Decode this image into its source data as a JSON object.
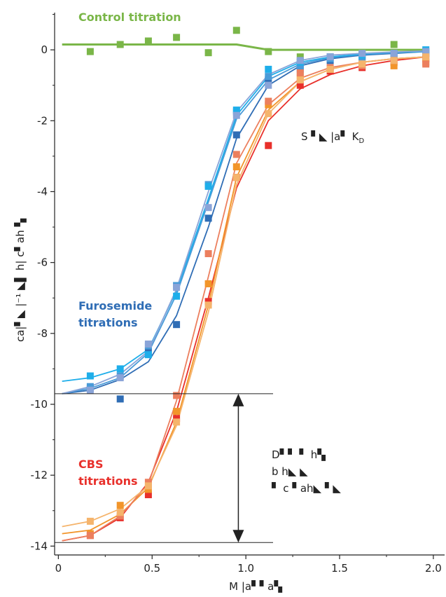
{
  "chart_data": {
    "type": "scatter",
    "xlabel": "M  |a▘▘a▚",
    "ylabel": "ca|▘◣ |⁻¹ ◣▌ h| c▘ah ▚",
    "xlim": [
      -0.02,
      2.06
    ],
    "ylim": [
      -14.25,
      1.05
    ],
    "x_ticks": [
      "0",
      "0.5",
      "1.0",
      "1.5",
      "2.0"
    ],
    "y_ticks": [
      "0",
      "-2",
      "-4",
      "-6",
      "-8",
      "-10",
      "-12",
      "-14"
    ],
    "grid": false,
    "labels": {
      "control": "Control titration",
      "furosemide_line1": "Furosemide",
      "furosemide_line2": "titrations",
      "cbs_line1": "CBS",
      "cbs_line2": "titrations"
    },
    "annotations": {
      "stoich": "S ▘◣ |a▘ K",
      "stoich_sub": "D",
      "dh_line1": "D▘▘ ▘  h▚",
      "dh_line2": "b h◣ ◣",
      "dh_line3": "▘ c ▘ah◣ ▘◣"
    },
    "colors": {
      "control": "#7ab648",
      "furosemide": [
        "#2f6db5",
        "#4a9bd8",
        "#1eaeea",
        "#8aa4d8"
      ],
      "cbs": [
        "#e8302b",
        "#f2952a",
        "#ec7f5e",
        "#f5b46c"
      ]
    },
    "enthalpy_arrow": {
      "x": 0.96,
      "y_top": -9.7,
      "y_bottom": -13.9
    },
    "series": [
      {
        "group": "control",
        "x": [
          0.02,
          0.17,
          0.33,
          0.48,
          0.63,
          0.8,
          0.95,
          1.12,
          1.29,
          1.45,
          1.62,
          1.79,
          1.96
        ],
        "fit": [
          0.15,
          0.15,
          0.15,
          0.15,
          0.15,
          0.15,
          0.15,
          0.0,
          0.0,
          0.0,
          0.0,
          0.0,
          0.0
        ],
        "points_x": [
          0.17,
          0.33,
          0.48,
          0.63,
          0.8,
          0.95,
          1.12,
          1.29,
          1.45,
          1.62,
          1.79,
          1.96
        ],
        "points_y": [
          -0.05,
          0.15,
          0.25,
          0.35,
          -0.08,
          0.55,
          -0.05,
          -0.2,
          -0.2,
          -0.1,
          0.15,
          -0.05
        ]
      },
      {
        "group": "furosemide",
        "x": [
          0.02,
          0.17,
          0.33,
          0.48,
          0.63,
          0.8,
          0.95,
          1.12,
          1.29,
          1.45,
          1.62,
          1.79,
          1.96
        ],
        "fit": [
          -9.7,
          -9.6,
          -9.3,
          -8.8,
          -7.5,
          -5.0,
          -2.5,
          -1.0,
          -0.45,
          -0.25,
          -0.15,
          -0.1,
          -0.05
        ],
        "points_x": [
          0.17,
          0.33,
          0.48,
          0.63,
          0.8,
          0.95,
          1.12,
          1.29,
          1.45,
          1.62,
          1.79,
          1.96
        ],
        "points_y": [
          -9.55,
          -9.85,
          -8.5,
          -7.75,
          -4.75,
          -2.4,
          -0.85,
          -0.55,
          -0.3,
          -0.2,
          -0.15,
          -0.1
        ]
      },
      {
        "group": "furosemide",
        "x": [
          0.02,
          0.17,
          0.33,
          0.48,
          0.63,
          0.8,
          0.95,
          1.12,
          1.29,
          1.45,
          1.62,
          1.79,
          1.96
        ],
        "fit": [
          -9.7,
          -9.55,
          -9.25,
          -8.55,
          -6.9,
          -4.3,
          -1.95,
          -0.85,
          -0.4,
          -0.22,
          -0.13,
          -0.08,
          -0.05
        ],
        "points_x": [
          0.17,
          0.33,
          0.48,
          0.63,
          0.8,
          0.95,
          1.12,
          1.29,
          1.45,
          1.62,
          1.79,
          1.96
        ],
        "points_y": [
          -9.5,
          -9.2,
          -8.35,
          -6.65,
          -3.8,
          -1.75,
          -0.75,
          -0.45,
          -0.25,
          -0.2,
          -0.1,
          -0.05
        ]
      },
      {
        "group": "furosemide",
        "x": [
          0.02,
          0.17,
          0.33,
          0.48,
          0.63,
          0.8,
          0.95,
          1.12,
          1.29,
          1.45,
          1.62,
          1.79,
          1.96
        ],
        "fit": [
          -9.35,
          -9.25,
          -9.0,
          -8.45,
          -6.8,
          -4.2,
          -1.85,
          -0.75,
          -0.35,
          -0.2,
          -0.12,
          -0.07,
          -0.04
        ],
        "points_x": [
          0.17,
          0.33,
          0.48,
          0.63,
          0.8,
          0.95,
          1.12,
          1.29,
          1.45,
          1.62,
          1.79,
          1.96
        ],
        "points_y": [
          -9.2,
          -9.0,
          -8.6,
          -6.95,
          -3.85,
          -1.7,
          -0.55,
          -0.35,
          -0.2,
          -0.15,
          -0.1,
          0.0
        ]
      },
      {
        "group": "furosemide",
        "x": [
          0.02,
          0.17,
          0.33,
          0.48,
          0.63,
          0.8,
          0.95,
          1.12,
          1.29,
          1.45,
          1.62,
          1.79,
          1.96
        ],
        "fit": [
          -9.7,
          -9.5,
          -9.15,
          -8.5,
          -6.75,
          -4.0,
          -1.75,
          -0.7,
          -0.3,
          -0.15,
          -0.1,
          -0.06,
          -0.03
        ],
        "points_x": [
          0.17,
          0.33,
          0.48,
          0.63,
          0.8,
          0.95,
          1.12,
          1.29,
          1.45,
          1.62,
          1.79,
          1.96
        ],
        "points_y": [
          -9.6,
          -9.25,
          -8.3,
          -6.7,
          -4.45,
          -1.85,
          -1.0,
          -0.3,
          -0.2,
          -0.1,
          -0.1,
          -0.05
        ]
      },
      {
        "group": "cbs",
        "x": [
          0.02,
          0.17,
          0.33,
          0.48,
          0.63,
          0.8,
          0.95,
          1.12,
          1.29,
          1.45,
          1.62,
          1.79,
          1.96
        ],
        "fit": [
          -13.85,
          -13.7,
          -13.2,
          -12.2,
          -10.2,
          -7.0,
          -3.9,
          -2.0,
          -1.1,
          -0.7,
          -0.45,
          -0.3,
          -0.2
        ],
        "points_x": [
          0.17,
          0.33,
          0.48,
          0.63,
          0.8,
          0.95,
          1.12,
          1.29,
          1.45,
          1.62,
          1.79,
          1.96
        ],
        "points_y": [
          -13.7,
          -13.2,
          -12.55,
          -10.4,
          -7.1,
          -3.6,
          -2.7,
          -1.0,
          -0.6,
          -0.5,
          -0.35,
          -0.25
        ]
      },
      {
        "group": "cbs",
        "x": [
          0.02,
          0.17,
          0.33,
          0.48,
          0.63,
          0.8,
          0.95,
          1.12,
          1.29,
          1.45,
          1.62,
          1.79,
          1.96
        ],
        "fit": [
          -13.65,
          -13.55,
          -13.1,
          -12.35,
          -10.5,
          -7.2,
          -3.6,
          -1.7,
          -0.9,
          -0.55,
          -0.35,
          -0.25,
          -0.2
        ],
        "points_x": [
          0.17,
          0.33,
          0.48,
          0.63,
          0.8,
          0.95,
          1.12,
          1.29,
          1.45,
          1.62,
          1.79,
          1.96
        ],
        "points_y": [
          -13.65,
          -12.85,
          -12.4,
          -10.2,
          -6.6,
          -3.3,
          -1.55,
          -0.75,
          -0.55,
          -0.4,
          -0.45,
          -0.35
        ]
      },
      {
        "group": "cbs",
        "x": [
          0.02,
          0.17,
          0.33,
          0.48,
          0.63,
          0.8,
          0.95,
          1.12,
          1.29,
          1.45,
          1.62,
          1.79,
          1.96
        ],
        "fit": [
          -13.85,
          -13.7,
          -13.15,
          -12.25,
          -9.9,
          -6.4,
          -3.2,
          -1.55,
          -0.8,
          -0.5,
          -0.35,
          -0.25,
          -0.2
        ],
        "points_x": [
          0.17,
          0.33,
          0.48,
          0.63,
          0.8,
          0.95,
          1.12,
          1.29,
          1.45,
          1.62,
          1.79,
          1.96
        ],
        "points_y": [
          -13.7,
          -13.15,
          -12.2,
          -9.75,
          -5.75,
          -2.95,
          -1.45,
          -0.65,
          -0.5,
          -0.45,
          -0.3,
          -0.4
        ]
      },
      {
        "group": "cbs",
        "x": [
          0.02,
          0.17,
          0.33,
          0.48,
          0.63,
          0.8,
          0.95,
          1.12,
          1.29,
          1.45,
          1.62,
          1.79,
          1.96
        ],
        "fit": [
          -13.45,
          -13.3,
          -12.95,
          -12.3,
          -10.6,
          -7.4,
          -3.8,
          -1.8,
          -0.9,
          -0.55,
          -0.35,
          -0.25,
          -0.2
        ],
        "points_x": [
          0.17,
          0.33,
          0.48,
          0.63,
          0.8,
          0.95,
          1.12,
          1.29,
          1.45,
          1.62,
          1.79,
          1.96
        ],
        "points_y": [
          -13.3,
          -13.05,
          -12.3,
          -10.5,
          -7.2,
          -3.6,
          -1.8,
          -0.85,
          -0.55,
          -0.4,
          -0.3,
          -0.2
        ]
      }
    ]
  }
}
